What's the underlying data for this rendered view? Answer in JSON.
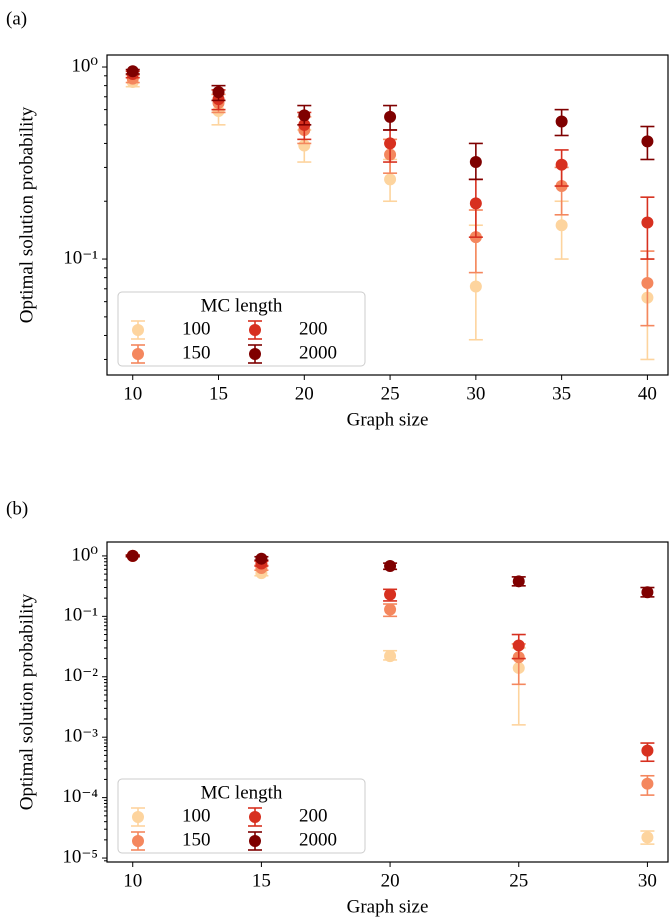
{
  "chart_data": [
    {
      "type": "errorbar",
      "panel": "(a)",
      "xlabel": "Graph size",
      "ylabel": "Optimal solution probability",
      "log_y": true,
      "legend_title": "MC length",
      "legend": "lower left",
      "xlim": [
        8.5,
        41.2
      ],
      "xticks": [
        10,
        15,
        20,
        25,
        30,
        35,
        40
      ],
      "ylim": [
        0.0249,
        1.155
      ],
      "yticks": [
        {
          "value": 0.1,
          "label": "10⁻¹"
        },
        {
          "value": 1,
          "label": "10⁰"
        }
      ],
      "x": [
        10,
        15,
        20,
        25,
        30,
        35,
        40
      ],
      "series": [
        {
          "name": "100",
          "color": "#fdd49e",
          "values": [
            0.835,
            0.59,
            0.39,
            0.26,
            0.072,
            0.15,
            0.063
          ],
          "lower": [
            0.79,
            0.5,
            0.32,
            0.2,
            0.038,
            0.1,
            0.03
          ],
          "upper": [
            0.88,
            0.67,
            0.47,
            0.33,
            0.15,
            0.2,
            0.1
          ]
        },
        {
          "name": "150",
          "color": "#f4875e",
          "values": [
            0.87,
            0.65,
            0.47,
            0.35,
            0.13,
            0.24,
            0.075
          ],
          "lower": [
            0.83,
            0.58,
            0.4,
            0.28,
            0.085,
            0.17,
            0.045
          ],
          "upper": [
            0.91,
            0.72,
            0.55,
            0.42,
            0.18,
            0.3,
            0.11
          ]
        },
        {
          "name": "200",
          "color": "#d7301f",
          "values": [
            0.92,
            0.68,
            0.5,
            0.4,
            0.195,
            0.31,
            0.155
          ],
          "lower": [
            0.88,
            0.6,
            0.42,
            0.32,
            0.13,
            0.24,
            0.1
          ],
          "upper": [
            0.95,
            0.76,
            0.58,
            0.47,
            0.26,
            0.37,
            0.21
          ]
        },
        {
          "name": "2000",
          "color": "#7f0000",
          "values": [
            0.95,
            0.74,
            0.56,
            0.55,
            0.32,
            0.52,
            0.41
          ],
          "lower": [
            0.92,
            0.67,
            0.5,
            0.47,
            0.26,
            0.44,
            0.33
          ],
          "upper": [
            0.97,
            0.8,
            0.63,
            0.63,
            0.4,
            0.6,
            0.49
          ]
        }
      ]
    },
    {
      "type": "errorbar",
      "panel": "(b)",
      "xlabel": "Graph size",
      "ylabel": "Optimal solution probability",
      "log_y": true,
      "legend_title": "MC length",
      "legend": "lower left",
      "xlim": [
        9,
        30.8
      ],
      "xticks": [
        10,
        15,
        20,
        25,
        30
      ],
      "ylim": [
        8.6e-06,
        1.7
      ],
      "yticks": [
        {
          "value": 1e-05,
          "label": "10⁻⁵"
        },
        {
          "value": 0.0001,
          "label": "10⁻⁴"
        },
        {
          "value": 0.001,
          "label": "10⁻³"
        },
        {
          "value": 0.01,
          "label": "10⁻²"
        },
        {
          "value": 0.1,
          "label": "10⁻¹"
        },
        {
          "value": 1,
          "label": "10⁰"
        }
      ],
      "x": [
        10,
        15,
        20,
        25,
        30
      ],
      "series": [
        {
          "name": "100",
          "color": "#fdd49e",
          "values": [
            1.0,
            0.52,
            0.022,
            0.014,
            2.2e-05
          ],
          "lower": [
            0.97,
            0.47,
            0.019,
            0.0016,
            1.7e-05
          ],
          "upper": [
            1.03,
            0.58,
            0.027,
            0.03,
            2.8e-05
          ]
        },
        {
          "name": "150",
          "color": "#f4875e",
          "values": [
            1.0,
            0.63,
            0.13,
            0.021,
            0.00017
          ],
          "lower": [
            0.97,
            0.58,
            0.1,
            0.0075,
            0.00011
          ],
          "upper": [
            1.03,
            0.7,
            0.16,
            0.035,
            0.00023
          ]
        },
        {
          "name": "200",
          "color": "#d7301f",
          "values": [
            1.0,
            0.75,
            0.23,
            0.033,
            0.0006
          ],
          "lower": [
            0.97,
            0.68,
            0.18,
            0.02,
            0.0004
          ],
          "upper": [
            1.03,
            0.82,
            0.28,
            0.05,
            0.0008
          ]
        },
        {
          "name": "2000",
          "color": "#7f0000",
          "values": [
            1.0,
            0.9,
            0.68,
            0.38,
            0.25
          ],
          "lower": [
            0.97,
            0.85,
            0.6,
            0.32,
            0.21
          ],
          "upper": [
            1.03,
            0.97,
            0.76,
            0.45,
            0.3
          ]
        }
      ]
    }
  ]
}
